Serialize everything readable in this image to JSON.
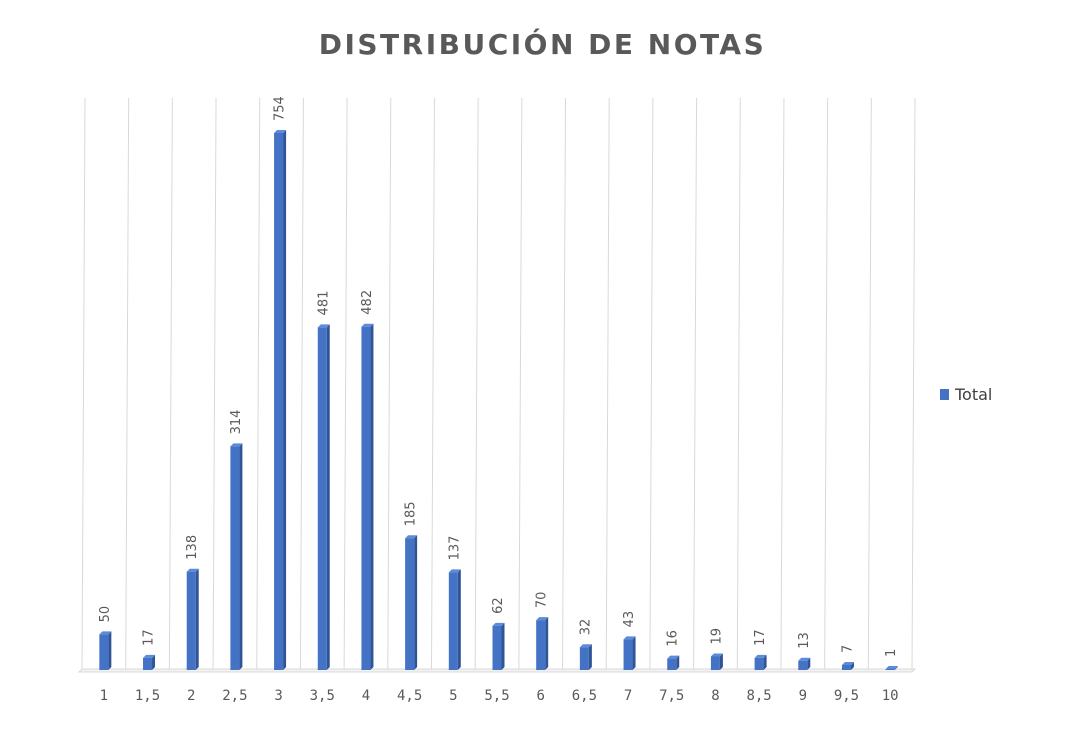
{
  "chart_data": {
    "type": "bar",
    "title": "DISTRIBUCIÓN DE NOTAS",
    "xlabel": "",
    "ylabel": "",
    "categories": [
      "1",
      "1,5",
      "2",
      "2,5",
      "3",
      "3,5",
      "4",
      "4,5",
      "5",
      "5,5",
      "6",
      "6,5",
      "7",
      "7,5",
      "8",
      "8,5",
      "9",
      "9,5",
      "10"
    ],
    "series": [
      {
        "name": "Total",
        "values": [
          50,
          17,
          138,
          314,
          754,
          481,
          482,
          185,
          137,
          62,
          70,
          32,
          43,
          16,
          19,
          17,
          13,
          7,
          1
        ]
      }
    ],
    "ylim": [
      0,
      754
    ],
    "grid": "vertical",
    "legend_position": "right",
    "colors": {
      "bar": "#4472C4",
      "bar_side": "#2F5597",
      "grid": "#D9D9D9",
      "text": "#595959"
    }
  }
}
